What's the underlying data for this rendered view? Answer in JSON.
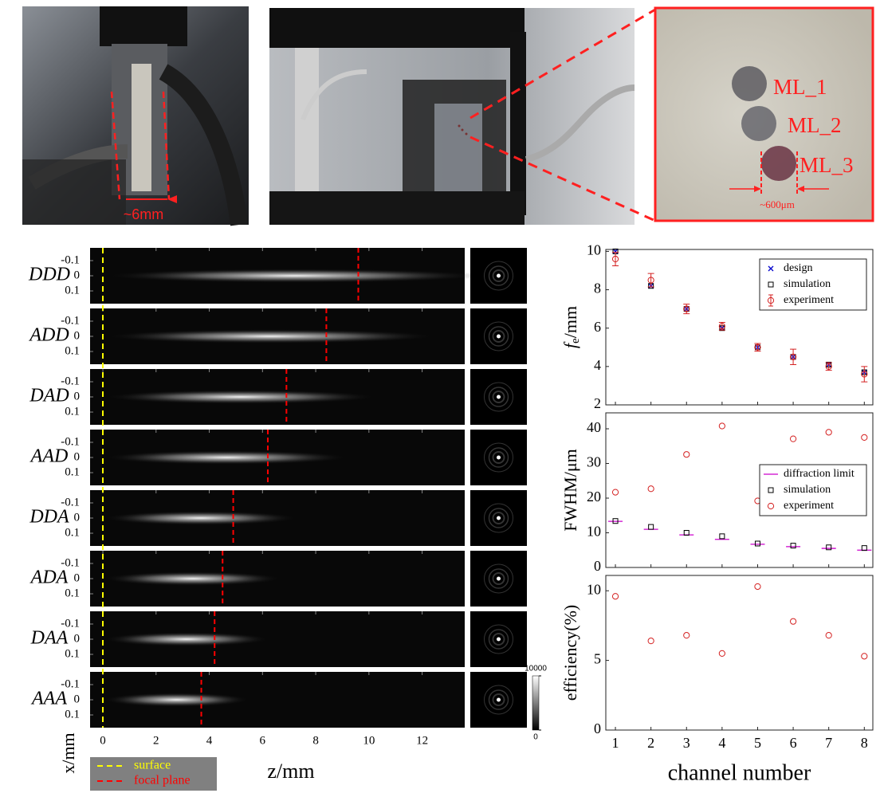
{
  "photo_labels": {
    "width": "~6mm",
    "lenses": [
      "ML_1",
      "ML_2",
      "ML_3"
    ],
    "spot": "~600μm"
  },
  "chart_data": [
    {
      "type": "strips",
      "x_label": "z/mm",
      "y_label": "x/mm",
      "xlim": [
        -0.48,
        13.6
      ],
      "xticks": [
        0,
        2,
        4,
        6,
        8,
        10,
        12
      ],
      "ylim": [
        -0.184,
        0.184
      ],
      "y_inverted": true,
      "yticks": [
        -0.1,
        0,
        0.1
      ],
      "rows": [
        "DDD",
        "ADD",
        "DAD",
        "AAD",
        "DDA",
        "ADA",
        "DAA",
        "AAA"
      ],
      "lines": [
        {
          "name": "surface",
          "color": "#ffff00",
          "value": 0
        },
        {
          "name": "focal plane",
          "color": "#ff0000",
          "values": [
            9.6,
            8.4,
            6.9,
            6.2,
            4.9,
            4.5,
            4.2,
            3.7
          ]
        }
      ],
      "colorbar": {
        "ticks": [
          0,
          10000
        ]
      }
    },
    {
      "type": "scatter",
      "y_label_parts": [
        "f",
        "e",
        "/mm"
      ],
      "x": [
        1,
        2,
        3,
        4,
        5,
        6,
        7,
        8
      ],
      "xlim": [
        0.73,
        8.24
      ],
      "ylim": [
        2,
        10.1
      ],
      "yticks": [
        2,
        4,
        6,
        8,
        10
      ],
      "legend": "upper right",
      "series": [
        {
          "name": "design",
          "color": "#0000cc",
          "marker": "x",
          "values": [
            10,
            8.2,
            7,
            6,
            5,
            4.5,
            4.1,
            3.7
          ]
        },
        {
          "name": "simulation",
          "color": "#000000",
          "marker": "square",
          "values": [
            10,
            8.2,
            7,
            6,
            5,
            4.5,
            4.1,
            3.7
          ]
        },
        {
          "name": "experiment",
          "color": "#d42020",
          "marker": "circle",
          "values": [
            9.6,
            8.5,
            7,
            6.1,
            5,
            4.5,
            4,
            3.6
          ],
          "errors": [
            0.35,
            0.35,
            0.25,
            0.2,
            0.2,
            0.4,
            0.2,
            0.4
          ]
        }
      ]
    },
    {
      "type": "scatter",
      "y_label": "FWHM/μm",
      "x": [
        1,
        2,
        3,
        4,
        5,
        6,
        7,
        8
      ],
      "xlim": [
        0.73,
        8.24
      ],
      "ylim": [
        0,
        44.6
      ],
      "yticks": [
        0,
        10,
        20,
        30,
        40
      ],
      "legend": "center right",
      "series": [
        {
          "name": "diffraction limit",
          "color": "#cc00cc",
          "marker": "hline",
          "values": [
            13.3,
            11,
            9.4,
            8.1,
            6.7,
            6,
            5.5,
            5
          ]
        },
        {
          "name": "simulation",
          "color": "#000000",
          "marker": "square",
          "values": [
            13.4,
            11.7,
            10,
            9,
            6.9,
            6.3,
            5.8,
            5.6
          ]
        },
        {
          "name": "experiment",
          "color": "#d42020",
          "marker": "circle",
          "values": [
            21.7,
            22.7,
            32.6,
            40.8,
            19.2,
            37.1,
            39,
            37.5
          ]
        }
      ]
    },
    {
      "type": "scatter",
      "y_label": "efficiency(%)",
      "x_label": "channel number",
      "x": [
        1,
        2,
        3,
        4,
        5,
        6,
        7,
        8
      ],
      "xlim": [
        0.73,
        8.24
      ],
      "xticks": [
        1,
        2,
        3,
        4,
        5,
        6,
        7,
        8
      ],
      "ylim": [
        0,
        11.1
      ],
      "yticks": [
        0,
        5,
        10
      ],
      "series": [
        {
          "color": "#d42020",
          "marker": "circle",
          "values": [
            9.6,
            6.4,
            6.8,
            5.5,
            10.3,
            7.8,
            6.8,
            5.3
          ]
        }
      ]
    }
  ]
}
